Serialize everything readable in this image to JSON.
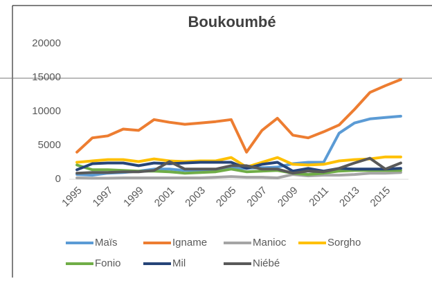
{
  "chart_data": {
    "type": "line",
    "title": "Boukoumbé",
    "categories": [
      "1995",
      null,
      "1997",
      null,
      "1999",
      null,
      "2001",
      null,
      "2003",
      null,
      "2005",
      null,
      "2007",
      null,
      "2009",
      null,
      "2011",
      null,
      "2013",
      null,
      "2015",
      null
    ],
    "series": [
      {
        "name": "Maïs",
        "color": "#5b9bd5",
        "values": [
          700,
          600,
          900,
          1000,
          1200,
          1500,
          1500,
          1300,
          1300,
          1400,
          1600,
          1600,
          1700,
          1800,
          2300,
          2500,
          2500,
          6800,
          8300,
          8900,
          9100,
          9300
        ]
      },
      {
        "name": "Igname",
        "color": "#ed7d31",
        "values": [
          4000,
          6100,
          6400,
          7400,
          7200,
          8800,
          8400,
          8100,
          8300,
          8500,
          8800,
          4000,
          7200,
          9000,
          6500,
          6100,
          7000,
          8000,
          10300,
          12800,
          13800,
          14700
        ]
      },
      {
        "name": "Manioc",
        "color": "#a5a5a5",
        "values": [
          200,
          150,
          150,
          200,
          200,
          200,
          200,
          200,
          200,
          300,
          400,
          300,
          300,
          200,
          700,
          500,
          600,
          600,
          700,
          900,
          900,
          1000
        ]
      },
      {
        "name": "Sorgho",
        "color": "#ffc000",
        "values": [
          2500,
          2700,
          2900,
          2900,
          2600,
          3000,
          2700,
          2600,
          2700,
          2700,
          3200,
          1800,
          2500,
          3200,
          2200,
          2100,
          2200,
          2700,
          2900,
          3000,
          3300,
          3300
        ]
      },
      {
        "name": "Fonio",
        "color": "#70ad47",
        "values": [
          2100,
          1400,
          1400,
          1300,
          1200,
          1200,
          1100,
          900,
          1000,
          1100,
          1500,
          1100,
          1200,
          1300,
          900,
          700,
          900,
          1200,
          1300,
          1300,
          1300,
          1300
        ]
      },
      {
        "name": "Mil",
        "color": "#264478",
        "values": [
          1400,
          2300,
          2400,
          2400,
          2000,
          2400,
          2300,
          2400,
          2500,
          2500,
          2500,
          1600,
          2200,
          2500,
          1200,
          1600,
          1200,
          1600,
          1500,
          1500,
          1500,
          1600
        ]
      },
      {
        "name": "Niébé",
        "color": "#595959",
        "values": [
          900,
          1000,
          1000,
          1100,
          1100,
          1300,
          2600,
          1500,
          1500,
          1500,
          2000,
          2000,
          1500,
          1500,
          900,
          1200,
          1100,
          1600,
          2400,
          3100,
          1500,
          2400
        ]
      }
    ],
    "ylim": [
      0,
      20000
    ],
    "yticks": [
      0,
      5000,
      10000,
      15000,
      20000
    ],
    "grid": false
  }
}
